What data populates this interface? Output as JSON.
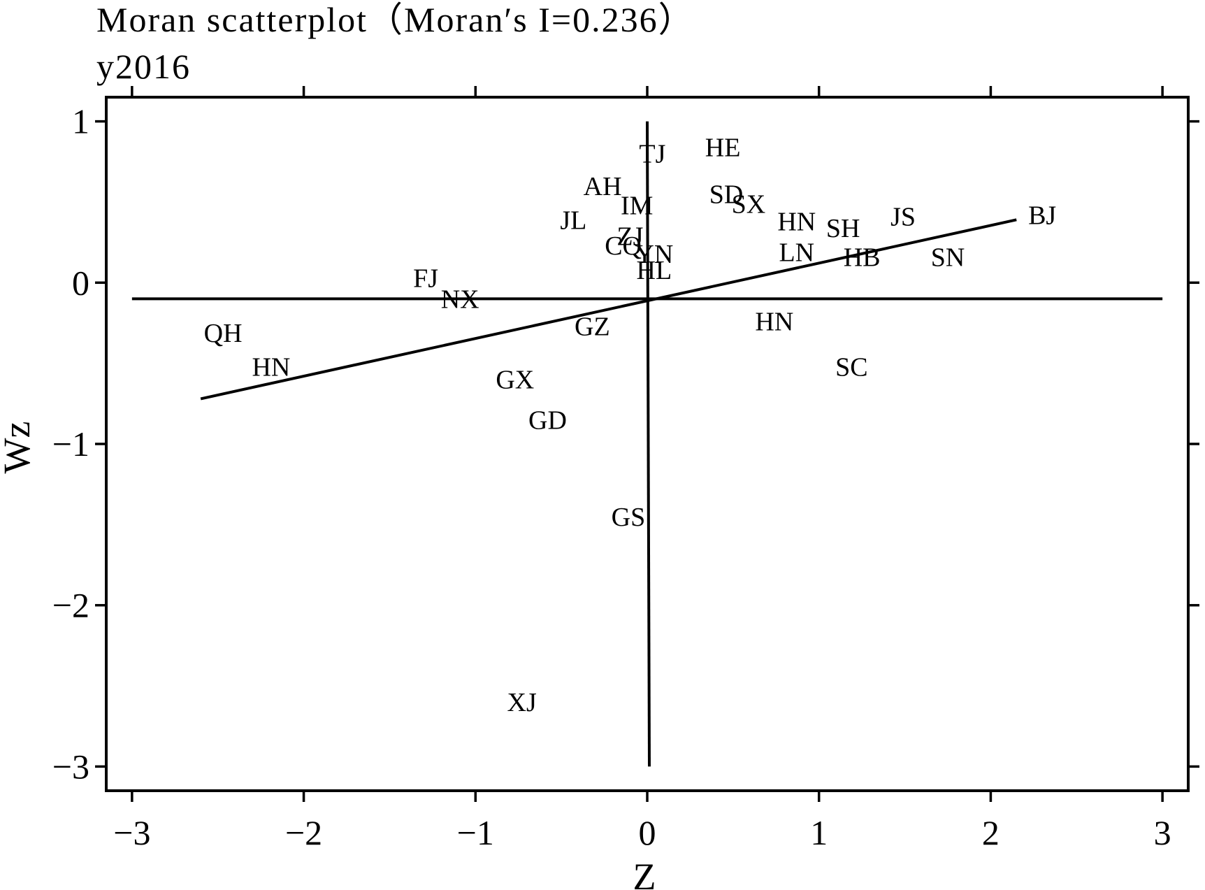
{
  "chart_data": {
    "type": "scatter",
    "title": "Moran  scatterplot（Moran′s I=0.236）",
    "subtitle": "y2016",
    "xlabel": "Z",
    "ylabel": "Wz",
    "xlim": [
      -3.15,
      3.15
    ],
    "ylim": [
      -3.15,
      1.15
    ],
    "xticks": [
      -3,
      -2,
      -1,
      0,
      1,
      2,
      3
    ],
    "xtick_labels": [
      "−3",
      "−2",
      "−1",
      "0",
      "1",
      "2",
      "3"
    ],
    "yticks": [
      1,
      0,
      -1,
      -2,
      -3
    ],
    "ytick_labels": [
      "1",
      "0",
      "−1",
      "−2",
      "−3"
    ],
    "grid": false,
    "reference_lines": {
      "x_mean": 0,
      "y_mean": -0.1,
      "fit_line": {
        "from": [
          -2.6,
          -0.72
        ],
        "to": [
          2.15,
          0.39
        ]
      }
    },
    "points": [
      {
        "label": "TJ",
        "x": 0.03,
        "y": 0.8
      },
      {
        "label": "HE",
        "x": 0.44,
        "y": 0.84
      },
      {
        "label": "AH",
        "x": -0.26,
        "y": 0.6
      },
      {
        "label": "IM",
        "x": -0.06,
        "y": 0.48
      },
      {
        "label": "SD",
        "x": 0.46,
        "y": 0.55
      },
      {
        "label": "SX",
        "x": 0.59,
        "y": 0.49
      },
      {
        "label": "HN",
        "x": 0.87,
        "y": 0.38
      },
      {
        "label": "SH",
        "x": 1.14,
        "y": 0.34
      },
      {
        "label": "JS",
        "x": 1.49,
        "y": 0.41
      },
      {
        "label": "BJ",
        "x": 2.3,
        "y": 0.42
      },
      {
        "label": "JL",
        "x": -0.43,
        "y": 0.39
      },
      {
        "label": "ZJ",
        "x": -0.1,
        "y": 0.29
      },
      {
        "label": "CQ",
        "x": -0.14,
        "y": 0.23
      },
      {
        "label": "YN",
        "x": 0.04,
        "y": 0.18
      },
      {
        "label": "HL",
        "x": 0.04,
        "y": 0.08
      },
      {
        "label": "LN",
        "x": 0.87,
        "y": 0.19
      },
      {
        "label": "HB",
        "x": 1.25,
        "y": 0.16
      },
      {
        "label": "SN",
        "x": 1.75,
        "y": 0.16
      },
      {
        "label": "FJ",
        "x": -1.29,
        "y": 0.03
      },
      {
        "label": "NX",
        "x": -1.09,
        "y": -0.1
      },
      {
        "label": "GZ",
        "x": -0.32,
        "y": -0.27
      },
      {
        "label": "HN",
        "x": 0.74,
        "y": -0.24
      },
      {
        "label": "QH",
        "x": -2.47,
        "y": -0.31
      },
      {
        "label": "HN",
        "x": -2.19,
        "y": -0.52
      },
      {
        "label": "SC",
        "x": 1.19,
        "y": -0.52
      },
      {
        "label": "GX",
        "x": -0.77,
        "y": -0.6
      },
      {
        "label": "GD",
        "x": -0.58,
        "y": -0.85
      },
      {
        "label": "GS",
        "x": -0.11,
        "y": -1.45
      },
      {
        "label": "XJ",
        "x": -0.73,
        "y": -2.6
      }
    ]
  }
}
